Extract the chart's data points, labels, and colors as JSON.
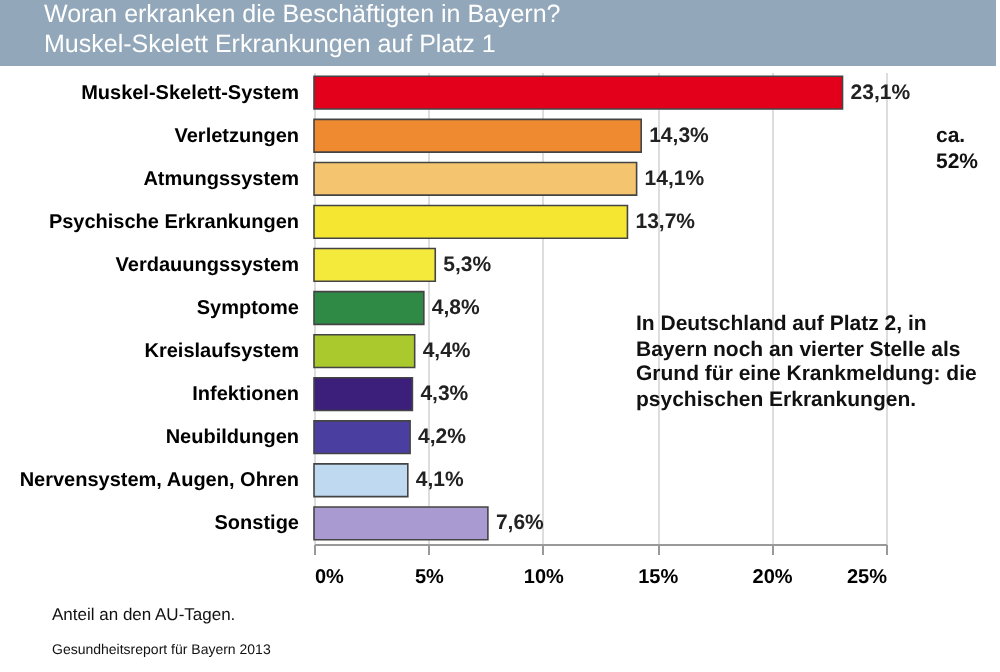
{
  "chart_data": {
    "type": "bar",
    "orientation": "horizontal",
    "title": "Woran erkranken die Beschäftigten in Bayern?",
    "subtitle": "Muskel-Skelett Erkrankungen auf Platz 1",
    "categories": [
      "Muskel-Skelett-System",
      "Verletzungen",
      "Atmungssystem",
      "Psychische Erkrankungen",
      "Verdauungssystem",
      "Symptome",
      "Kreislaufsystem",
      "Infektionen",
      "Neubildungen",
      "Nervensystem, Augen, Ohren",
      "Sonstige"
    ],
    "values": [
      23.1,
      14.3,
      14.1,
      13.7,
      5.3,
      4.8,
      4.4,
      4.3,
      4.2,
      4.1,
      7.6
    ],
    "value_labels": [
      "23,1%",
      "14,3%",
      "14,1%",
      "13,7%",
      "5,3%",
      "4,8%",
      "4,4%",
      "4,3%",
      "4,2%",
      "4,1%",
      "7,6%"
    ],
    "colors": [
      "#e2001a",
      "#f08a30",
      "#f5c46e",
      "#f5e632",
      "#f3ea3c",
      "#2f8a45",
      "#a9c92c",
      "#3b1f7a",
      "#4a3fa0",
      "#bfd9f0",
      "#a99bd2"
    ],
    "xlim": [
      0,
      25
    ],
    "xticks": [
      {
        "value": 0,
        "label": "0%"
      },
      {
        "value": 5,
        "label": "5%"
      },
      {
        "value": 10,
        "label": "10%"
      },
      {
        "value": 15,
        "label": "15%"
      },
      {
        "value": 20,
        "label": "20%"
      },
      {
        "value": 25,
        "label": "25%"
      }
    ],
    "grid": "x",
    "annotations": [
      "ca. 52%",
      "In Deutschland auf Platz 2, in Bayern noch an vierter Stelle als Grund für eine Krankmeldung: die psychischen Erkrankungen.",
      "Anteil an den AU-Tagen.",
      "Gesundheitsreport für Bayern 2013"
    ]
  }
}
